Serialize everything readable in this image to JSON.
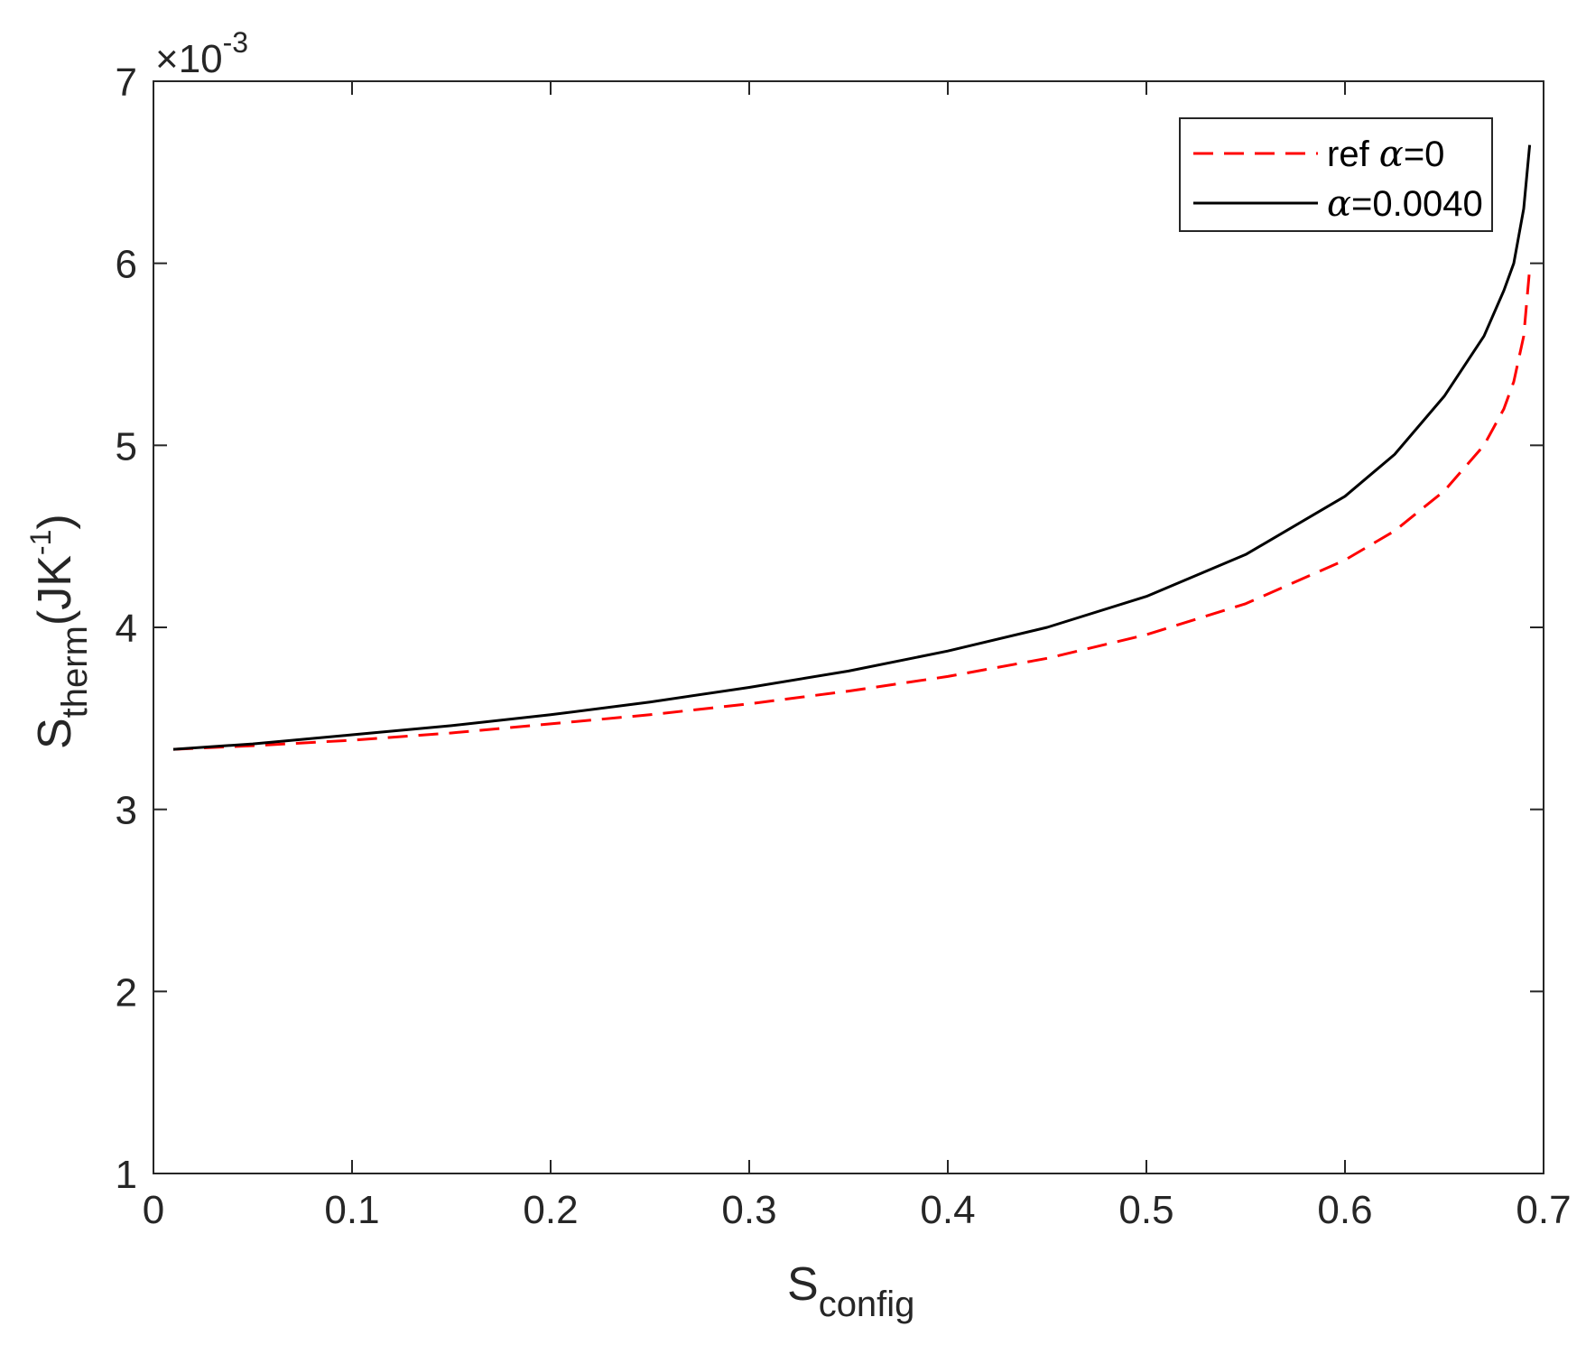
{
  "chart_data": {
    "type": "line",
    "xlabel": {
      "main": "S",
      "sub": "config"
    },
    "ylabel": {
      "main": "S",
      "sub": "therm",
      "unit_open": "(JK",
      "unit_sup": "-1",
      "unit_close": ")"
    },
    "y_exponent": {
      "base": "×10",
      "power": "-3"
    },
    "xlim": [
      0,
      0.7
    ],
    "ylim": [
      1,
      7
    ],
    "x_ticks": [
      0,
      0.1,
      0.2,
      0.3,
      0.4,
      0.5,
      0.6,
      0.7
    ],
    "x_tick_labels": [
      "0",
      "0.1",
      "0.2",
      "0.3",
      "0.4",
      "0.5",
      "0.6",
      "0.7"
    ],
    "y_ticks": [
      1,
      2,
      3,
      4,
      5,
      6,
      7
    ],
    "y_tick_labels": [
      "1",
      "2",
      "3",
      "4",
      "5",
      "6",
      "7"
    ],
    "grid": false,
    "legend_position": "top-right",
    "series": [
      {
        "legend_prefix": "ref ",
        "legend_greek": "α",
        "legend_suffix": "=0",
        "color": "#ff0000",
        "dash": true,
        "x": [
          0.01,
          0.05,
          0.1,
          0.15,
          0.2,
          0.25,
          0.3,
          0.35,
          0.4,
          0.45,
          0.5,
          0.55,
          0.6,
          0.625,
          0.65,
          0.67,
          0.68,
          0.685,
          0.69,
          0.693
        ],
        "y": [
          3.33,
          3.35,
          3.38,
          3.42,
          3.47,
          3.52,
          3.58,
          3.65,
          3.73,
          3.83,
          3.96,
          4.13,
          4.37,
          4.53,
          4.75,
          5.0,
          5.2,
          5.35,
          5.6,
          5.97
        ]
      },
      {
        "legend_prefix": "",
        "legend_greek": "α",
        "legend_suffix": "=0.0040",
        "color": "#000000",
        "dash": false,
        "x": [
          0.01,
          0.05,
          0.1,
          0.15,
          0.2,
          0.25,
          0.3,
          0.35,
          0.4,
          0.45,
          0.5,
          0.55,
          0.6,
          0.625,
          0.65,
          0.67,
          0.68,
          0.685,
          0.69,
          0.693
        ],
        "y": [
          3.33,
          3.36,
          3.41,
          3.46,
          3.52,
          3.59,
          3.67,
          3.76,
          3.87,
          4.0,
          4.17,
          4.4,
          4.72,
          4.95,
          5.27,
          5.6,
          5.85,
          6.0,
          6.3,
          6.65
        ]
      }
    ]
  }
}
